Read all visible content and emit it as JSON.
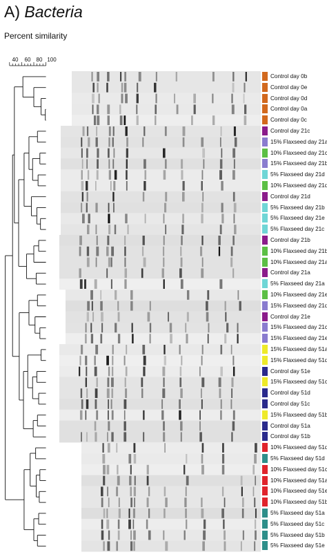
{
  "figure": {
    "panel_letter": "A)",
    "title_italic": "Bacteria",
    "subtitle": "Percent similarity",
    "scale_ticks": [
      "40",
      "60",
      "80",
      "100"
    ]
  },
  "colors": {
    "control_day0": "#d2691e",
    "control_day21": "#8b1c8b",
    "flax15_day21": "#8a7ccf",
    "flax10_day21": "#5cbf45",
    "flax5_day21": "#6fd6d6",
    "flax15_day51": "#eeea2a",
    "control_day51": "#2a2a8c",
    "flax10_day51": "#e0242c",
    "flax5_day51": "#2e8f8a"
  },
  "samples": [
    {
      "label": "Control day 0b",
      "group": "control_day0"
    },
    {
      "label": "Control day 0e",
      "group": "control_day0"
    },
    {
      "label": "Control day 0d",
      "group": "control_day0"
    },
    {
      "label": "Control day 0a",
      "group": "control_day0"
    },
    {
      "label": "Control day 0c",
      "group": "control_day0"
    },
    {
      "label": "Control day 21c",
      "group": "control_day21"
    },
    {
      "label": "15% Flaxseed day 21a",
      "group": "flax15_day21"
    },
    {
      "label": "10% Flaxseed day 21c",
      "group": "flax10_day21"
    },
    {
      "label": "15% Flaxseed day 21b",
      "group": "flax15_day21"
    },
    {
      "label": "5% Flaxseed day 21d",
      "group": "flax5_day21"
    },
    {
      "label": "10% Flaxseed day 21d",
      "group": "flax10_day21"
    },
    {
      "label": "Control day 21d",
      "group": "control_day21"
    },
    {
      "label": "5% Flaxseed day 21b",
      "group": "flax5_day21"
    },
    {
      "label": "5% Flaxseed day 21e",
      "group": "flax5_day21"
    },
    {
      "label": "5% Flaxseed day 21c",
      "group": "flax5_day21"
    },
    {
      "label": "Control day 21b",
      "group": "control_day21"
    },
    {
      "label": "10% Flaxseed day 21b",
      "group": "flax10_day21"
    },
    {
      "label": "10% Flaxseed day 21a",
      "group": "flax10_day21"
    },
    {
      "label": "Control day 21a",
      "group": "control_day21"
    },
    {
      "label": "5% Flaxseed day 21a",
      "group": "flax5_day21"
    },
    {
      "label": "10% Flaxseed day 21e",
      "group": "flax10_day21"
    },
    {
      "label": "15% Flaxseed day 21d",
      "group": "flax15_day21"
    },
    {
      "label": "Control day 21e",
      "group": "control_day21"
    },
    {
      "label": "15% Flaxseed day 21c",
      "group": "flax15_day21"
    },
    {
      "label": "15% Flaxseed day 21e",
      "group": "flax15_day21"
    },
    {
      "label": "15% Flaxseed day 51a",
      "group": "flax15_day51"
    },
    {
      "label": "15% Flaxseed day 51d",
      "group": "flax15_day51"
    },
    {
      "label": "Control day 51e",
      "group": "control_day51"
    },
    {
      "label": "15% Flaxseed day 51c",
      "group": "flax15_day51"
    },
    {
      "label": "Control day 51d",
      "group": "control_day51"
    },
    {
      "label": "Control day 51c",
      "group": "control_day51"
    },
    {
      "label": "15% Flaxseed day 51b",
      "group": "flax15_day51"
    },
    {
      "label": "Control day 51a",
      "group": "control_day51"
    },
    {
      "label": "Control day 51b",
      "group": "control_day51"
    },
    {
      "label": "10% Flaxseed day 51d",
      "group": "flax10_day51"
    },
    {
      "label": "5% Flaxseed day 51d",
      "group": "flax5_day51"
    },
    {
      "label": "10% Flaxseed day 51c",
      "group": "flax10_day51"
    },
    {
      "label": "10% Flaxseed day 51a",
      "group": "flax10_day51"
    },
    {
      "label": "10% Flaxseed day 51e",
      "group": "flax10_day51"
    },
    {
      "label": "10% Flaxseed day 51b",
      "group": "flax10_day51"
    },
    {
      "label": "5% Flaxseed day 51a",
      "group": "flax5_day51"
    },
    {
      "label": "5% Flaxseed day 51c",
      "group": "flax5_day51"
    },
    {
      "label": "5% Flaxseed day 51b",
      "group": "flax5_day51"
    },
    {
      "label": "5% Flaxseed day 51e",
      "group": "flax5_day51"
    }
  ]
}
